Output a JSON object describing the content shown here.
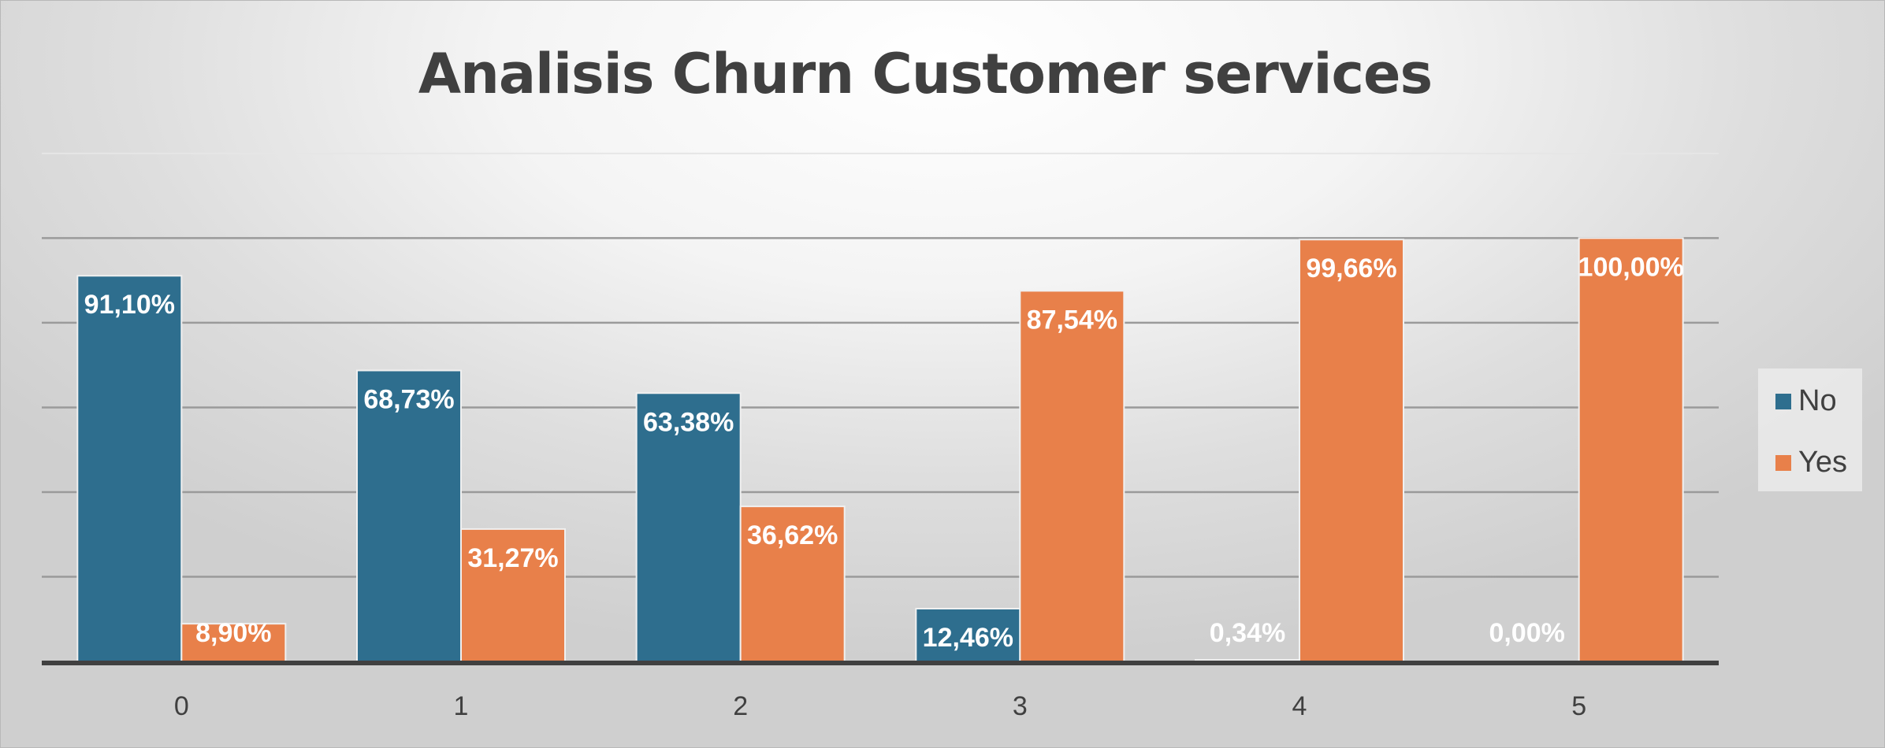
{
  "chart_data": {
    "type": "bar",
    "title": "Analisis Churn Customer services",
    "xlabel": "",
    "ylabel": "",
    "categories": [
      "0",
      "1",
      "2",
      "3",
      "4",
      "5"
    ],
    "series": [
      {
        "name": "No",
        "color": "#2E6E8E",
        "values": [
          91.1,
          68.73,
          63.38,
          12.46,
          0.34,
          0.0
        ],
        "labels": [
          "91,10%",
          "68,73%",
          "63,38%",
          "12,46%",
          "0,34%",
          "0,00%"
        ]
      },
      {
        "name": "Yes",
        "color": "#E8804A",
        "values": [
          8.9,
          31.27,
          36.62,
          87.54,
          99.66,
          100.0
        ],
        "labels": [
          "8,90%",
          "31,27%",
          "36,62%",
          "87,54%",
          "99,66%",
          "100,00%"
        ]
      }
    ],
    "ylim": [
      0,
      120
    ],
    "y_tick_labels_shown": false,
    "grid": true,
    "legend_position": "right"
  }
}
